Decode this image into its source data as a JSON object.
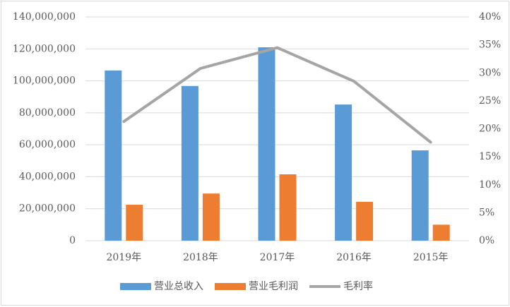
{
  "chart_data": {
    "type": "bar",
    "categories": [
      "2019年",
      "2018年",
      "2017年",
      "2016年",
      "2015年"
    ],
    "series": [
      {
        "name": "营业总收入",
        "kind": "bar",
        "axis": "left",
        "color": "#5b9bd5",
        "values": [
          106500000,
          96800000,
          121000000,
          85200000,
          56500000
        ]
      },
      {
        "name": "营业毛利润",
        "kind": "bar",
        "axis": "left",
        "color": "#ed7d31",
        "values": [
          22500000,
          29500000,
          41500000,
          24300000,
          10000000
        ]
      },
      {
        "name": "毛利率",
        "kind": "line",
        "axis": "right",
        "color": "#a5a5a5",
        "values": [
          0.213,
          0.308,
          0.345,
          0.285,
          0.176
        ]
      }
    ],
    "ylim": [
      0,
      140000000
    ],
    "y2lim": [
      0,
      0.4
    ],
    "yticks": [
      "0",
      "20,000,000",
      "40,000,000",
      "60,000,000",
      "80,000,000",
      "100,000,000",
      "120,000,000",
      "140,000,000"
    ],
    "y2ticks": [
      "0%",
      "5%",
      "10%",
      "15%",
      "20%",
      "25%",
      "30%",
      "35%",
      "40%"
    ],
    "title": "",
    "xlabel": "",
    "ylabel": "",
    "grid": true,
    "legend_position": "bottom"
  }
}
